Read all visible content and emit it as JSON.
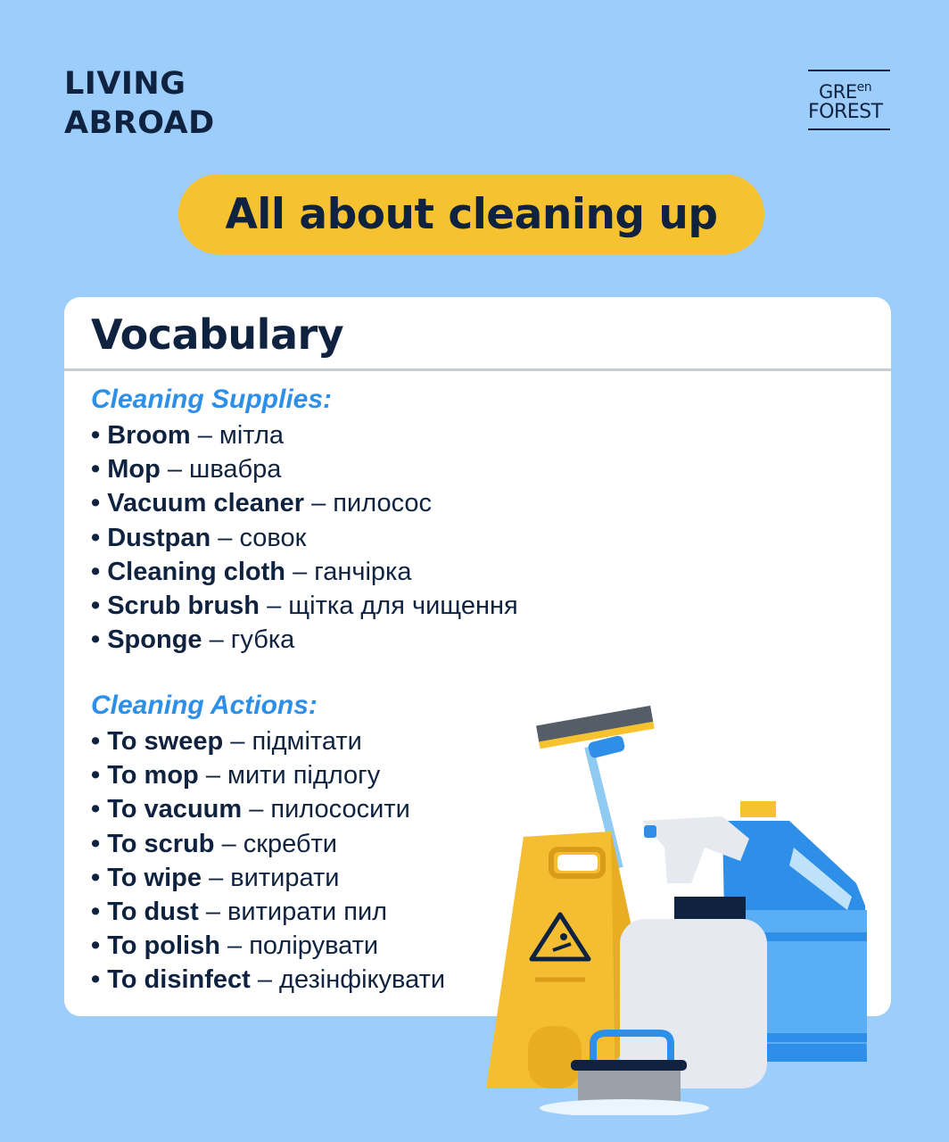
{
  "header": {
    "brand_line1": "LIVING",
    "brand_line2": "ABROAD",
    "logo_line1": "GRE",
    "logo_line1_sup": "en",
    "logo_line2": "FOREST"
  },
  "title": "All about cleaning up",
  "card": {
    "heading": "Vocabulary",
    "sections": [
      {
        "title": "Cleaning Supplies:",
        "items": [
          {
            "term": "Broom",
            "translation": "– мітла"
          },
          {
            "term": "Mop",
            "translation": "– швабра"
          },
          {
            "term": "Vacuum cleaner",
            "translation": "– пилосос"
          },
          {
            "term": "Dustpan",
            "translation": "– совок"
          },
          {
            "term": "Cleaning cloth",
            "translation": "– ганчірка"
          },
          {
            "term": "Scrub brush",
            "translation": "– щітка для чищення"
          },
          {
            "term": "Sponge",
            "translation": "– губка"
          }
        ]
      },
      {
        "title": "Cleaning Actions:",
        "items": [
          {
            "term": "To sweep",
            "translation": "– підмітати"
          },
          {
            "term": "To mop",
            "translation": "– мити підлогу"
          },
          {
            "term": "To vacuum",
            "translation": "– пилососити"
          },
          {
            "term": "To scrub",
            "translation": "– скребти"
          },
          {
            "term": "To wipe",
            "translation": "– витирати"
          },
          {
            "term": "To dust",
            "translation": "– витирати пил"
          },
          {
            "term": "To polish",
            "translation": "– полірувати"
          },
          {
            "term": "To disinfect",
            "translation": "– дезінфікувати"
          }
        ]
      }
    ]
  },
  "colors": {
    "background": "#9dcdfb",
    "navy": "#0f2340",
    "accent_yellow": "#f7c22f",
    "section_blue": "#2e8fe8"
  },
  "illustration_icons": [
    "squeegee-icon",
    "wet-floor-sign-icon",
    "spray-bottle-icon",
    "detergent-jug-icon",
    "scrub-brush-icon"
  ]
}
